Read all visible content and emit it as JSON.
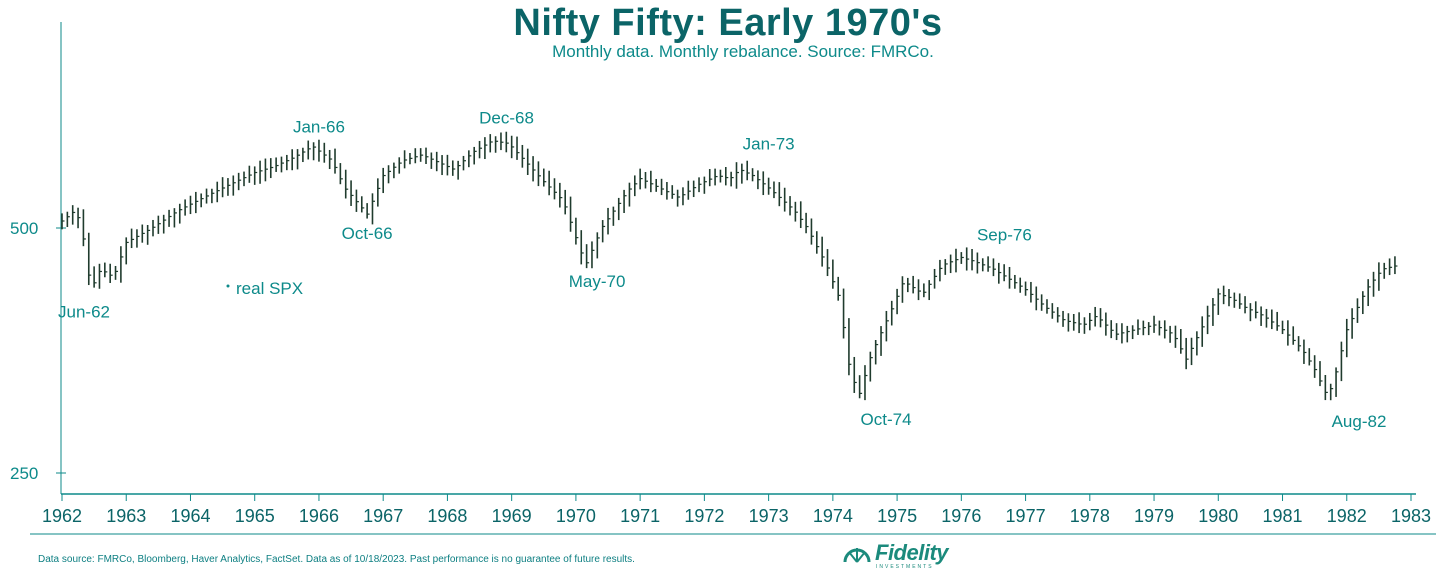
{
  "title": "Nifty Fifty: Early 1970's",
  "subtitle": "Monthly data.  Monthly rebalance. Source: FMRCo.",
  "footer": "Data source: FMRCo, Bloomberg, Haver Analytics, FactSet. Data as of 10/18/2023. Past performance is no guarantee of future results.",
  "logo": {
    "name": "Fidelity",
    "tagline": "INVESTMENTS"
  },
  "colors": {
    "accent": "#0d8a8a",
    "title": "#0b6467",
    "series": "#1f3b2d"
  },
  "chart_data": {
    "type": "line",
    "style": "monthly high-low bars",
    "scale": "log",
    "ylim": [
      250,
      780
    ],
    "xlim": [
      1962.0,
      1983.0
    ],
    "y_ticks": [
      {
        "value": 250,
        "label": "250"
      },
      {
        "value": 500,
        "label": "500"
      }
    ],
    "x_ticks": [
      "1962",
      "1963",
      "1964",
      "1965",
      "1966",
      "1967",
      "1968",
      "1969",
      "1970",
      "1971",
      "1972",
      "1973",
      "1974",
      "1975",
      "1976",
      "1977",
      "1978",
      "1979",
      "1980",
      "1981",
      "1982",
      "1983"
    ],
    "legend": {
      "entries": [
        "real SPX"
      ]
    },
    "series": [
      {
        "name": "real SPX",
        "anchors": [
          [
            1962.0,
            510
          ],
          [
            1962.2,
            525
          ],
          [
            1962.3,
            505
          ],
          [
            1962.45,
            420
          ],
          [
            1962.6,
            445
          ],
          [
            1962.8,
            435
          ],
          [
            1963.0,
            480
          ],
          [
            1963.4,
            500
          ],
          [
            1963.8,
            525
          ],
          [
            1964.2,
            545
          ],
          [
            1964.6,
            565
          ],
          [
            1965.0,
            585
          ],
          [
            1965.3,
            595
          ],
          [
            1965.6,
            610
          ],
          [
            1965.9,
            630
          ],
          [
            1966.2,
            605
          ],
          [
            1966.4,
            560
          ],
          [
            1966.75,
            520
          ],
          [
            1967.0,
            580
          ],
          [
            1967.3,
            605
          ],
          [
            1967.6,
            615
          ],
          [
            1967.9,
            600
          ],
          [
            1968.1,
            590
          ],
          [
            1968.4,
            620
          ],
          [
            1968.7,
            640
          ],
          [
            1968.95,
            635
          ],
          [
            1969.2,
            605
          ],
          [
            1969.5,
            570
          ],
          [
            1969.8,
            540
          ],
          [
            1970.15,
            450
          ],
          [
            1970.4,
            500
          ],
          [
            1970.8,
            555
          ],
          [
            1971.0,
            575
          ],
          [
            1971.3,
            560
          ],
          [
            1971.6,
            545
          ],
          [
            1971.9,
            565
          ],
          [
            1972.2,
            580
          ],
          [
            1972.4,
            575
          ],
          [
            1972.55,
            590
          ],
          [
            1972.75,
            580
          ],
          [
            1973.0,
            560
          ],
          [
            1973.4,
            525
          ],
          [
            1973.6,
            500
          ],
          [
            1973.9,
            450
          ],
          [
            1974.1,
            410
          ],
          [
            1974.25,
            340
          ],
          [
            1974.4,
            310
          ],
          [
            1974.6,
            350
          ],
          [
            1974.9,
            395
          ],
          [
            1975.1,
            430
          ],
          [
            1975.4,
            415
          ],
          [
            1975.7,
            450
          ],
          [
            1976.0,
            460
          ],
          [
            1976.2,
            455
          ],
          [
            1976.5,
            445
          ],
          [
            1976.8,
            430
          ],
          [
            1977.0,
            420
          ],
          [
            1977.3,
            400
          ],
          [
            1977.6,
            385
          ],
          [
            1977.9,
            380
          ],
          [
            1978.1,
            390
          ],
          [
            1978.4,
            370
          ],
          [
            1978.7,
            375
          ],
          [
            1979.0,
            380
          ],
          [
            1979.3,
            370
          ],
          [
            1979.5,
            345
          ],
          [
            1979.8,
            385
          ],
          [
            1980.0,
            415
          ],
          [
            1980.2,
            410
          ],
          [
            1980.4,
            400
          ],
          [
            1980.7,
            390
          ],
          [
            1981.0,
            375
          ],
          [
            1981.3,
            355
          ],
          [
            1981.5,
            335
          ],
          [
            1981.7,
            310
          ],
          [
            1981.8,
            325
          ],
          [
            1982.0,
            375
          ],
          [
            1982.3,
            420
          ],
          [
            1982.55,
            445
          ],
          [
            1982.8,
            450
          ]
        ]
      }
    ],
    "annotations": [
      {
        "label": "Jun-62",
        "x": 1962.42,
        "y": 420
      },
      {
        "label": "Jan-66",
        "x": 1966.0,
        "y": 630
      },
      {
        "label": "Oct-66",
        "x": 1966.75,
        "y": 520
      },
      {
        "label": "Dec-68",
        "x": 1968.92,
        "y": 640
      },
      {
        "label": "May-70",
        "x": 1970.33,
        "y": 450
      },
      {
        "label": "Jan-73",
        "x": 1973.0,
        "y": 590
      },
      {
        "label": "Oct-74",
        "x": 1974.75,
        "y": 310
      },
      {
        "label": "Sep-76",
        "x": 1976.67,
        "y": 460
      },
      {
        "label": "Aug-82",
        "x": 1982.58,
        "y": 310
      }
    ]
  }
}
